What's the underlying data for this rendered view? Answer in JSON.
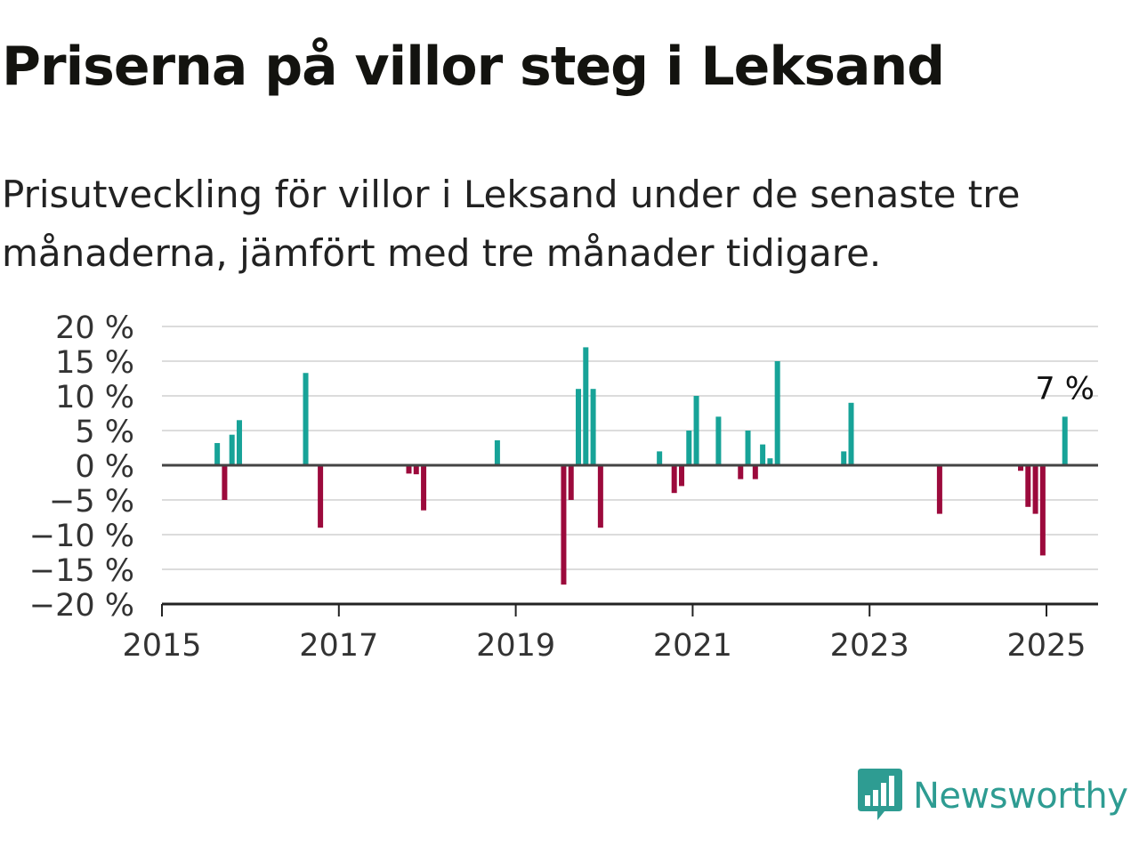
{
  "title": "Priserna på villor steg i Leksand",
  "subtitle": "Prisutveckling för villor i Leksand under de senaste tre månaderna, jämfört med tre månader tidigare.",
  "brand": {
    "name": "Newsworthy",
    "logo_icon": "newsworthy-chart-bubble-icon"
  },
  "colors": {
    "positive": "#17a398",
    "negative": "#9c0a3c",
    "grid": "#dcdcdc",
    "axis": "#444444"
  },
  "chart_data": {
    "type": "bar",
    "x_unit": "date",
    "y_unit": "%",
    "ylim": [
      -20,
      20
    ],
    "y_ticks": [
      20,
      15,
      10,
      5,
      0,
      -5,
      -10,
      -15,
      -20
    ],
    "y_tick_labels": [
      "20 %",
      "15 %",
      "10 %",
      "5 %",
      "0 %",
      "−5 %",
      "−10 %",
      "−15 %",
      "−20 %"
    ],
    "xlim": [
      "2015-01",
      "2025-08"
    ],
    "x_ticks": [
      "2015",
      "2017",
      "2019",
      "2021",
      "2023",
      "2025"
    ],
    "grid": true,
    "annotation": {
      "label": "7 %",
      "x": "2025-03",
      "y": 7
    },
    "points": [
      {
        "x": "2015-08",
        "y": 3.2
      },
      {
        "x": "2015-09",
        "y": -5.0
      },
      {
        "x": "2015-10",
        "y": 4.4
      },
      {
        "x": "2015-11",
        "y": 6.5
      },
      {
        "x": "2016-08",
        "y": 13.3
      },
      {
        "x": "2016-10",
        "y": -9.0
      },
      {
        "x": "2017-10",
        "y": -1.2
      },
      {
        "x": "2017-11",
        "y": -1.3
      },
      {
        "x": "2017-12",
        "y": -6.5
      },
      {
        "x": "2018-10",
        "y": 3.6
      },
      {
        "x": "2019-07",
        "y": -17.2
      },
      {
        "x": "2019-08",
        "y": -5.0
      },
      {
        "x": "2019-09",
        "y": 11.0
      },
      {
        "x": "2019-10",
        "y": 17.0
      },
      {
        "x": "2019-11",
        "y": 11.0
      },
      {
        "x": "2019-12",
        "y": -9.0
      },
      {
        "x": "2020-08",
        "y": 2.0
      },
      {
        "x": "2020-10",
        "y": -4.0
      },
      {
        "x": "2020-11",
        "y": -3.0
      },
      {
        "x": "2020-12",
        "y": 5.0
      },
      {
        "x": "2021-01",
        "y": 10.0
      },
      {
        "x": "2021-04",
        "y": 7.0
      },
      {
        "x": "2021-07",
        "y": -2.0
      },
      {
        "x": "2021-08",
        "y": 5.0
      },
      {
        "x": "2021-09",
        "y": -2.0
      },
      {
        "x": "2021-10",
        "y": 3.0
      },
      {
        "x": "2021-11",
        "y": 1.0
      },
      {
        "x": "2021-12",
        "y": 15.0
      },
      {
        "x": "2022-09",
        "y": 2.0
      },
      {
        "x": "2022-10",
        "y": 9.0
      },
      {
        "x": "2023-10",
        "y": -7.0
      },
      {
        "x": "2024-09",
        "y": -0.8
      },
      {
        "x": "2024-10",
        "y": -6.0
      },
      {
        "x": "2024-11",
        "y": -7.0
      },
      {
        "x": "2024-12",
        "y": -13.0
      },
      {
        "x": "2025-03",
        "y": 7.0
      }
    ]
  }
}
